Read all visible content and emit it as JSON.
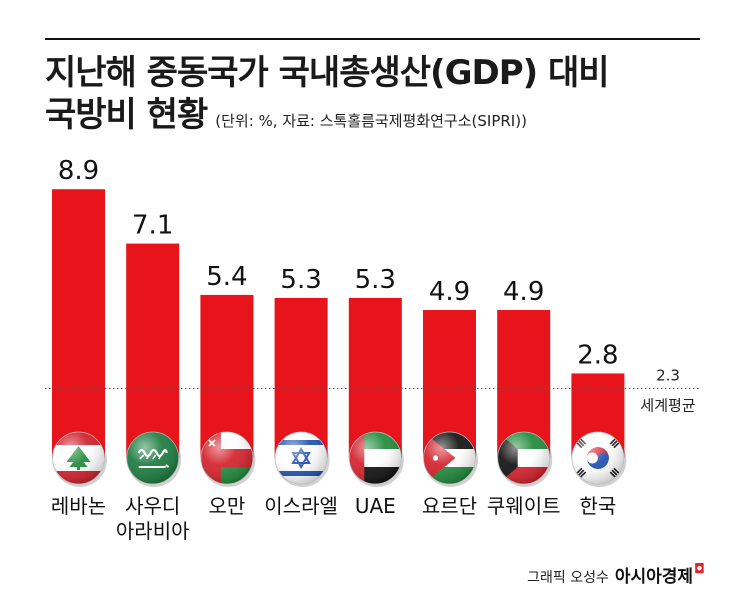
{
  "header": {
    "title_line1": "지난해 중동국가 국내총생산(GDP) 대비",
    "title_line2": "국방비 현황",
    "subtitle": "(단위: %, 자료: 스톡홀름국제평화연구소(SIPRI))"
  },
  "chart_data": {
    "type": "bar",
    "title": "지난해 중동국가 국내총생산(GDP) 대비 국방비 현황",
    "unit": "%",
    "categories": [
      "레바논",
      "사우디\n아라비아",
      "오만",
      "이스라엘",
      "UAE",
      "요르단",
      "쿠웨이트",
      "한국"
    ],
    "values": [
      8.9,
      7.1,
      5.4,
      5.3,
      5.3,
      4.9,
      4.9,
      2.8
    ],
    "value_labels": [
      "8.9",
      "7.1",
      "5.4",
      "5.3",
      "5.3",
      "4.9",
      "4.9",
      "2.8"
    ],
    "flags": [
      "lebanon-flag",
      "saudi-arabia-flag",
      "oman-flag",
      "israel-flag",
      "uae-flag",
      "jordan-flag",
      "kuwait-flag",
      "south-korea-flag"
    ],
    "reference_line": {
      "value": 2.3,
      "value_label": "2.3",
      "label": "세계평균"
    },
    "bar_color": "#e8141c",
    "grid": false
  },
  "footer": {
    "credit_prefix": "그래픽 오성수",
    "brand": "아시아경제",
    "brand_mark_color": "#e6232a"
  }
}
